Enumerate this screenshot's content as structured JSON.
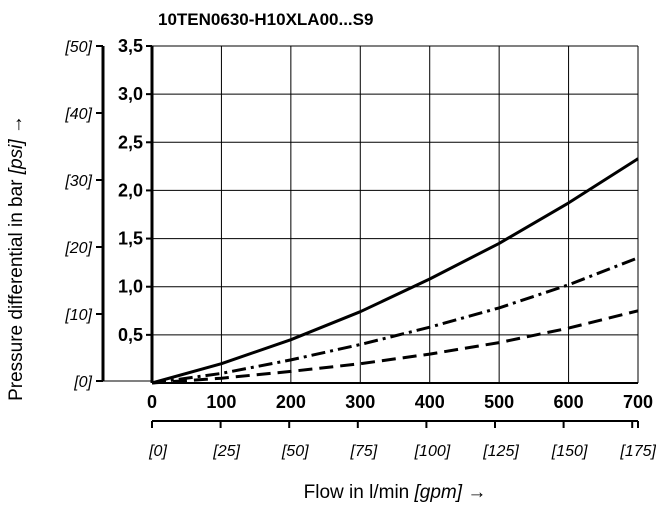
{
  "chart_data": {
    "type": "line",
    "title": "10TEN0630-H10XLA00...S9",
    "xlabel": {
      "main": "Flow in l/min ",
      "unit": "[gpm]",
      "arrow": " →"
    },
    "ylabel": {
      "main": "Pressure differential in bar ",
      "unit": "[psi]",
      "arrow": " →"
    },
    "xlim": [
      0,
      700
    ],
    "ylim": [
      0,
      3.5
    ],
    "grid": true,
    "x_ticks": [
      "0",
      "100",
      "200",
      "300",
      "400",
      "500",
      "600",
      "700"
    ],
    "y_ticks": [
      "3,5",
      "3,0",
      "2,5",
      "2,0",
      "1,5",
      "1,0",
      "0,5"
    ],
    "x2_ticks": [
      "[0]",
      "[25]",
      "[50]",
      "[75]",
      "[100]",
      "[125]",
      "[150]",
      "[175]"
    ],
    "x2_values": [
      0,
      25,
      50,
      75,
      100,
      125,
      150,
      175
    ],
    "y2_ticks": [
      "[50]",
      "[40]",
      "[30]",
      "[20]",
      "[10]",
      "[0]"
    ],
    "y2_values": [
      50,
      40,
      30,
      20,
      10,
      0
    ],
    "series": [
      {
        "style": "solid",
        "x": [
          0,
          100,
          200,
          300,
          400,
          500,
          600,
          700
        ],
        "values": [
          0,
          0.2,
          0.45,
          0.74,
          1.08,
          1.45,
          1.87,
          2.33
        ]
      },
      {
        "style": "dash-dot",
        "x": [
          0,
          100,
          200,
          300,
          400,
          500,
          600,
          700
        ],
        "values": [
          0,
          0.1,
          0.24,
          0.4,
          0.58,
          0.78,
          1.02,
          1.3
        ]
      },
      {
        "style": "dashed",
        "x": [
          0,
          100,
          200,
          300,
          400,
          500,
          600,
          700
        ],
        "values": [
          0,
          0.05,
          0.12,
          0.2,
          0.3,
          0.42,
          0.57,
          0.75
        ]
      }
    ]
  }
}
